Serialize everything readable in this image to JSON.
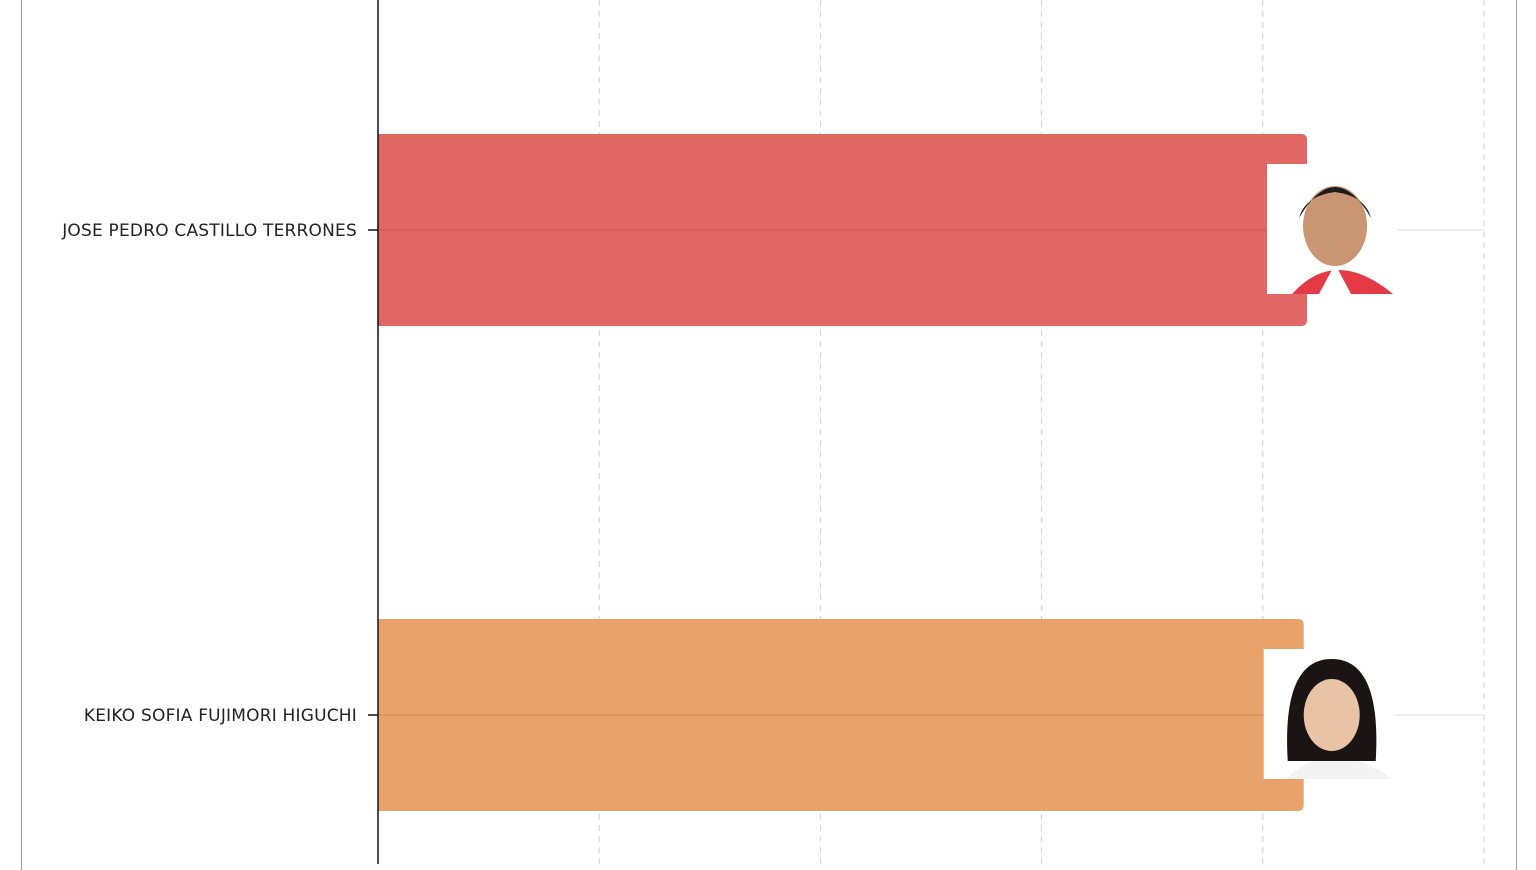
{
  "chart_data": {
    "type": "bar",
    "orientation": "horizontal",
    "categories": [
      "JOSE PEDRO CASTILLO TERRONES",
      "KEIKO SOFIA FUJIMORI HIGUCHI"
    ],
    "values": [
      84.0,
      83.7
    ],
    "xlim": [
      0,
      100
    ],
    "grid": true,
    "legend": "none",
    "colors": [
      "#e06763",
      "#eaa26b"
    ],
    "icons": [
      "candidate-photo-icon",
      "candidate-photo-icon"
    ]
  }
}
